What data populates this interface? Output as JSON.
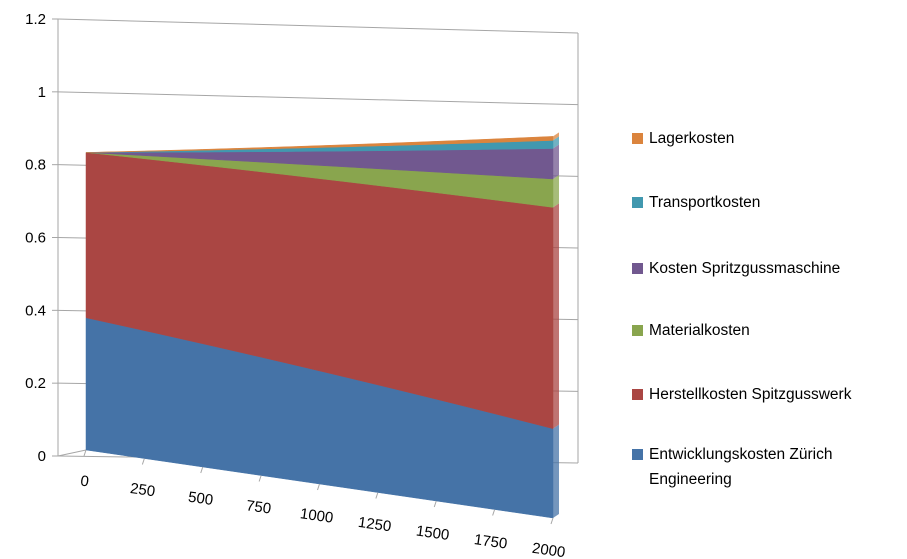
{
  "chart_data": {
    "type": "area",
    "stacked": true,
    "three_d": true,
    "x": [
      0,
      250,
      500,
      750,
      1000,
      1250,
      1500,
      1750,
      2000
    ],
    "x_tick_labels": [
      "0",
      "250",
      "500",
      "750",
      "1000",
      "1250",
      "1500",
      "1750",
      "2000"
    ],
    "ylim": [
      0,
      1.2
    ],
    "y_ticks": [
      "0",
      "0.2",
      "0.4",
      "0.6",
      "0.8",
      "1",
      "1.2"
    ],
    "grid": true,
    "legend_position": "right",
    "series": [
      {
        "name": "Entwicklungskosten Zürich Engineering",
        "color": "#4573a7",
        "start": 0.38,
        "end": 0.22
      },
      {
        "name": "Herstellkosten Spitzgusswerk",
        "color": "#aa4643",
        "start": 0.475,
        "end": 0.545
      },
      {
        "name": "Materialkosten",
        "color": "#89a54e",
        "start": 0.0,
        "end": 0.07
      },
      {
        "name": "Kosten Spritzgussmaschine",
        "color": "#71588f",
        "start": 0.0,
        "end": 0.075
      },
      {
        "name": "Transportkosten",
        "color": "#4198af",
        "start": 0.0,
        "end": 0.02
      },
      {
        "name": "Lagerkosten",
        "color": "#db843d",
        "start": 0.0,
        "end": 0.01
      }
    ]
  }
}
